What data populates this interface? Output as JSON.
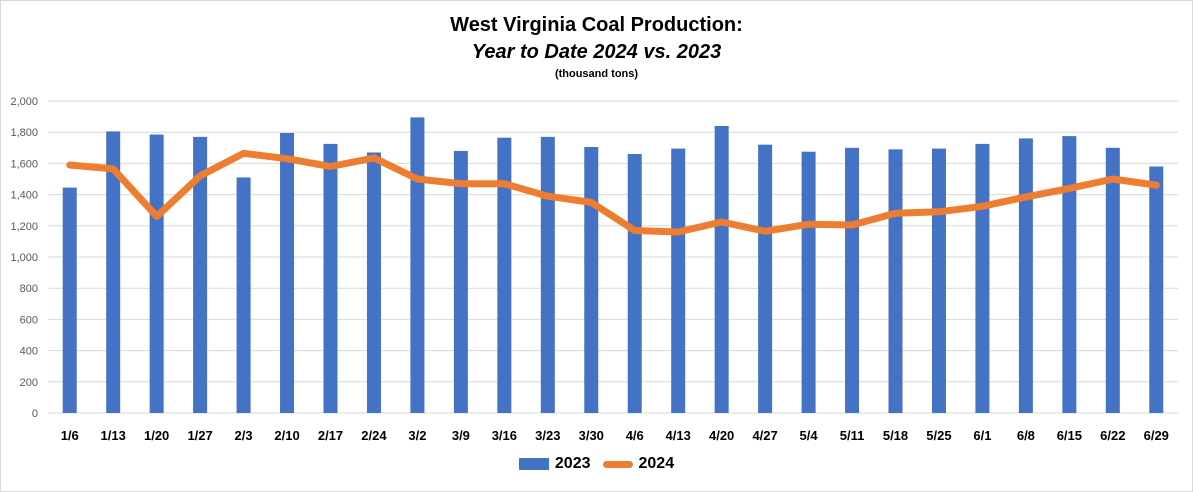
{
  "chart_data": {
    "type": "bar",
    "title": "West Virginia Coal Production:",
    "subtitle": "Year to Date 2024 vs. 2023",
    "units_note": "(thousand tons)",
    "categories": [
      "1/6",
      "1/13",
      "1/20",
      "1/27",
      "2/3",
      "2/10",
      "2/17",
      "2/24",
      "3/2",
      "3/9",
      "3/16",
      "3/23",
      "3/30",
      "4/6",
      "4/13",
      "4/20",
      "4/27",
      "5/4",
      "5/11",
      "5/18",
      "5/25",
      "6/1",
      "6/8",
      "6/15",
      "6/22",
      "6/29"
    ],
    "ylim": [
      0,
      2000
    ],
    "yticks": [
      0,
      200,
      400,
      600,
      800,
      1000,
      1200,
      1400,
      1600,
      1800,
      2000
    ],
    "ytick_labels": [
      "0",
      "200",
      "400",
      "600",
      "800",
      "1,000",
      "1,200",
      "1,400",
      "1,600",
      "1,800",
      "2,000"
    ],
    "grid": true,
    "legend_position": "bottom",
    "series": [
      {
        "name": "2023",
        "type": "bar",
        "color": "#4472C4",
        "values": [
          1445,
          1805,
          1785,
          1770,
          1510,
          1795,
          1725,
          1670,
          1895,
          1680,
          1765,
          1770,
          1705,
          1660,
          1695,
          1840,
          1720,
          1675,
          1700,
          1690,
          1695,
          1725,
          1760,
          1775,
          1700,
          1580
        ]
      },
      {
        "name": "2024",
        "type": "line",
        "color": "#ED7D31",
        "values": [
          1590,
          1565,
          1260,
          1520,
          1665,
          1630,
          1580,
          1635,
          1500,
          1470,
          1470,
          1390,
          1350,
          1170,
          1160,
          1225,
          1165,
          1210,
          1205,
          1280,
          1290,
          1325,
          1385,
          1440,
          1500,
          1460
        ]
      }
    ]
  }
}
